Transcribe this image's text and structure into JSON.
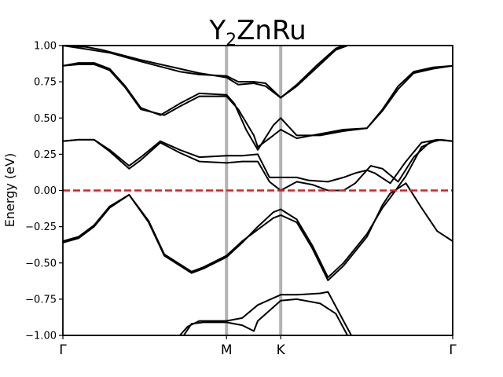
{
  "chart_data": {
    "type": "line",
    "title": "Y",
    "title_subscript": "2",
    "title_rest": "ZnRu",
    "ylabel": "Energy (eV)",
    "xlabel": "",
    "ylim": [
      -1.0,
      1.0
    ],
    "xlim": [
      0,
      1
    ],
    "grid": false,
    "yticks": [
      -1.0,
      -0.75,
      -0.5,
      -0.25,
      0.0,
      0.25,
      0.5,
      0.75,
      1.0
    ],
    "ytick_labels": [
      "−1.00",
      "−0.75",
      "−0.50",
      "−0.25",
      "0.00",
      "0.25",
      "0.50",
      "0.75",
      "1.00"
    ],
    "high_symmetry_points": [
      {
        "label": "Γ",
        "x": 0.0
      },
      {
        "label": "M",
        "x": 0.4198
      },
      {
        "label": "K",
        "x": 0.5588
      },
      {
        "label": "Γ",
        "x": 1.0
      }
    ],
    "fermi_level": 0.0,
    "colors": {
      "bands": "#000000",
      "fermi": "#e41a1c",
      "kpath_lines": "#b3b3b3"
    },
    "series": [
      {
        "values": [
          [
            0.0,
            1.0
          ],
          [
            0.05,
            0.98
          ],
          [
            0.12,
            0.95
          ],
          [
            0.2,
            0.89
          ],
          [
            0.3,
            0.82
          ],
          [
            0.35,
            0.8
          ],
          [
            0.4198,
            0.79
          ],
          [
            0.45,
            0.75
          ],
          [
            0.49,
            0.75
          ],
          [
            0.52,
            0.74
          ],
          [
            0.5588,
            0.64
          ],
          [
            0.6,
            0.73
          ],
          [
            0.65,
            0.86
          ],
          [
            0.7,
            0.98
          ],
          [
            0.72,
            1.0
          ]
        ]
      },
      {
        "values": [
          [
            0.0,
            1.0
          ],
          [
            0.06,
            0.99
          ],
          [
            0.1,
            0.97
          ],
          [
            0.2,
            0.9
          ],
          [
            0.3,
            0.84
          ],
          [
            0.35,
            0.81
          ],
          [
            0.4198,
            0.78
          ],
          [
            0.45,
            0.73
          ],
          [
            0.49,
            0.74
          ],
          [
            0.52,
            0.72
          ],
          [
            0.5588,
            0.64
          ],
          [
            0.6,
            0.72
          ],
          [
            0.66,
            0.87
          ],
          [
            0.7,
            0.97
          ],
          [
            0.73,
            1.0
          ]
        ]
      },
      {
        "values": [
          [
            0.0,
            0.86
          ],
          [
            0.04,
            0.87
          ],
          [
            0.08,
            0.87
          ],
          [
            0.12,
            0.83
          ],
          [
            0.16,
            0.71
          ],
          [
            0.2,
            0.56
          ],
          [
            0.26,
            0.52
          ],
          [
            0.3,
            0.58
          ],
          [
            0.35,
            0.65
          ],
          [
            0.4198,
            0.65
          ],
          [
            0.45,
            0.56
          ],
          [
            0.49,
            0.38
          ],
          [
            0.5,
            0.3
          ],
          [
            0.54,
            0.38
          ],
          [
            0.5588,
            0.42
          ],
          [
            0.6,
            0.36
          ],
          [
            0.66,
            0.39
          ],
          [
            0.72,
            0.42
          ],
          [
            0.78,
            0.43
          ],
          [
            0.82,
            0.55
          ],
          [
            0.86,
            0.7
          ],
          [
            0.9,
            0.81
          ],
          [
            0.95,
            0.84
          ],
          [
            1.0,
            0.86
          ]
        ]
      },
      {
        "values": [
          [
            0.0,
            0.86
          ],
          [
            0.04,
            0.88
          ],
          [
            0.08,
            0.88
          ],
          [
            0.12,
            0.84
          ],
          [
            0.16,
            0.72
          ],
          [
            0.2,
            0.57
          ],
          [
            0.25,
            0.52
          ],
          [
            0.3,
            0.6
          ],
          [
            0.35,
            0.67
          ],
          [
            0.4198,
            0.66
          ],
          [
            0.44,
            0.6
          ],
          [
            0.47,
            0.42
          ],
          [
            0.5,
            0.28
          ],
          [
            0.54,
            0.45
          ],
          [
            0.5588,
            0.5
          ],
          [
            0.6,
            0.38
          ],
          [
            0.66,
            0.38
          ],
          [
            0.72,
            0.41
          ],
          [
            0.78,
            0.43
          ],
          [
            0.82,
            0.56
          ],
          [
            0.86,
            0.72
          ],
          [
            0.9,
            0.82
          ],
          [
            0.95,
            0.85
          ],
          [
            1.0,
            0.86
          ]
        ]
      },
      {
        "values": [
          [
            0.0,
            0.34
          ],
          [
            0.04,
            0.35
          ],
          [
            0.08,
            0.35
          ],
          [
            0.12,
            0.28
          ],
          [
            0.17,
            0.17
          ],
          [
            0.2,
            0.23
          ],
          [
            0.25,
            0.34
          ],
          [
            0.3,
            0.28
          ],
          [
            0.35,
            0.23
          ],
          [
            0.4198,
            0.24
          ],
          [
            0.46,
            0.24
          ],
          [
            0.5,
            0.25
          ],
          [
            0.53,
            0.09
          ],
          [
            0.5588,
            0.09
          ],
          [
            0.6,
            0.09
          ],
          [
            0.63,
            0.07
          ],
          [
            0.68,
            0.06
          ],
          [
            0.72,
            0.09
          ],
          [
            0.75,
            0.12
          ],
          [
            0.78,
            0.14
          ],
          [
            0.8,
            0.12
          ],
          [
            0.84,
            0.05
          ],
          [
            0.88,
            0.2
          ],
          [
            0.92,
            0.33
          ],
          [
            0.96,
            0.35
          ],
          [
            1.0,
            0.34
          ]
        ]
      },
      {
        "values": [
          [
            0.0,
            0.34
          ],
          [
            0.04,
            0.35
          ],
          [
            0.08,
            0.35
          ],
          [
            0.12,
            0.27
          ],
          [
            0.17,
            0.15
          ],
          [
            0.2,
            0.21
          ],
          [
            0.25,
            0.33
          ],
          [
            0.3,
            0.26
          ],
          [
            0.35,
            0.2
          ],
          [
            0.4198,
            0.19
          ],
          [
            0.46,
            0.2
          ],
          [
            0.5,
            0.2
          ],
          [
            0.53,
            0.06
          ],
          [
            0.5588,
            0.0
          ],
          [
            0.6,
            0.06
          ],
          [
            0.64,
            0.04
          ],
          [
            0.68,
            0.0
          ],
          [
            0.72,
            0.0
          ],
          [
            0.75,
            0.05
          ],
          [
            0.79,
            0.17
          ],
          [
            0.82,
            0.15
          ],
          [
            0.86,
            0.06
          ],
          [
            0.9,
            0.23
          ],
          [
            0.94,
            0.33
          ],
          [
            0.97,
            0.35
          ],
          [
            1.0,
            0.34
          ]
        ]
      },
      {
        "values": [
          [
            0.0,
            -0.36
          ],
          [
            0.04,
            -0.33
          ],
          [
            0.08,
            -0.25
          ],
          [
            0.12,
            -0.12
          ],
          [
            0.17,
            -0.03
          ],
          [
            0.22,
            -0.22
          ],
          [
            0.26,
            -0.45
          ],
          [
            0.33,
            -0.57
          ],
          [
            0.36,
            -0.54
          ],
          [
            0.4198,
            -0.46
          ],
          [
            0.46,
            -0.36
          ],
          [
            0.5,
            -0.25
          ],
          [
            0.54,
            -0.15
          ],
          [
            0.5588,
            -0.13
          ],
          [
            0.6,
            -0.2
          ],
          [
            0.64,
            -0.38
          ],
          [
            0.68,
            -0.6
          ],
          [
            0.72,
            -0.5
          ],
          [
            0.78,
            -0.3
          ],
          [
            0.82,
            -0.12
          ],
          [
            0.84,
            -0.05
          ],
          [
            0.88,
            0.1
          ],
          [
            0.92,
            0.3
          ],
          [
            0.96,
            0.35
          ],
          [
            1.0,
            0.34
          ]
        ]
      },
      {
        "values": [
          [
            0.0,
            -0.35
          ],
          [
            0.04,
            -0.32
          ],
          [
            0.08,
            -0.24
          ],
          [
            0.12,
            -0.11
          ],
          [
            0.17,
            -0.03
          ],
          [
            0.22,
            -0.21
          ],
          [
            0.26,
            -0.44
          ],
          [
            0.33,
            -0.56
          ],
          [
            0.36,
            -0.53
          ],
          [
            0.4198,
            -0.45
          ],
          [
            0.46,
            -0.35
          ],
          [
            0.5,
            -0.27
          ],
          [
            0.54,
            -0.19
          ],
          [
            0.5588,
            -0.17
          ],
          [
            0.6,
            -0.22
          ],
          [
            0.64,
            -0.4
          ],
          [
            0.68,
            -0.62
          ],
          [
            0.72,
            -0.52
          ],
          [
            0.78,
            -0.32
          ],
          [
            0.82,
            -0.1
          ],
          [
            0.84,
            -0.02
          ],
          [
            0.88,
            0.05
          ],
          [
            0.92,
            -0.12
          ],
          [
            0.96,
            -0.28
          ],
          [
            1.0,
            -0.35
          ]
        ]
      },
      {
        "values": [
          [
            0.3,
            -1.0
          ],
          [
            0.32,
            -0.94
          ],
          [
            0.35,
            -0.9
          ],
          [
            0.4198,
            -0.9
          ],
          [
            0.46,
            -0.88
          ],
          [
            0.5,
            -0.79
          ],
          [
            0.5588,
            -0.72
          ],
          [
            0.6,
            -0.72
          ],
          [
            0.66,
            -0.71
          ],
          [
            0.68,
            -0.7
          ],
          [
            0.72,
            -0.9
          ],
          [
            0.74,
            -1.0
          ]
        ]
      },
      {
        "values": [
          [
            0.31,
            -1.0
          ],
          [
            0.33,
            -0.92
          ],
          [
            0.36,
            -0.91
          ],
          [
            0.4198,
            -0.91
          ],
          [
            0.46,
            -0.93
          ],
          [
            0.49,
            -0.97
          ],
          [
            0.5,
            -0.9
          ],
          [
            0.5588,
            -0.76
          ],
          [
            0.6,
            -0.75
          ],
          [
            0.66,
            -0.78
          ],
          [
            0.7,
            -0.85
          ],
          [
            0.73,
            -1.0
          ]
        ]
      }
    ]
  }
}
